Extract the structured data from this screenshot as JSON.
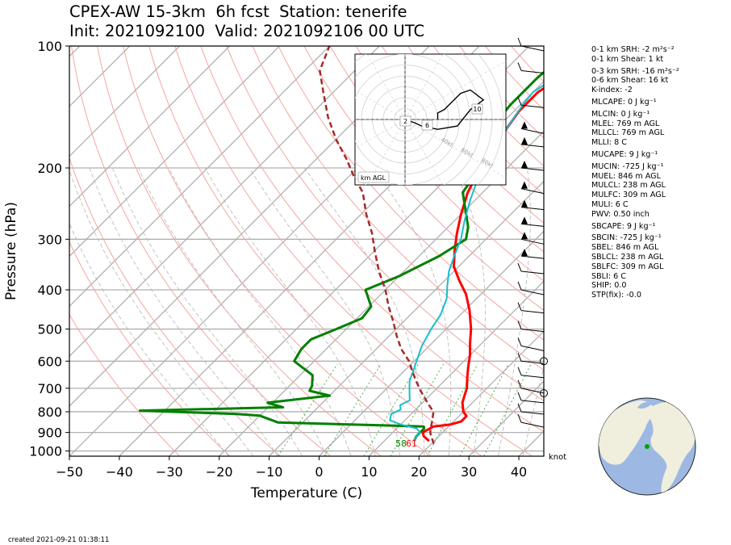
{
  "header": {
    "title_line1": "CPEX-AW 15-3km  6h fcst  Station: tenerife",
    "title_line2": "Init: 2021092100  Valid: 2021092106 00 UTC"
  },
  "footer": {
    "created": "created 2021-09-21 01:38:11"
  },
  "params": [
    "0-1 km SRH: -2 m²s⁻²",
    "0-1 km Shear: 1 kt",
    "0-3 km SRH: -16 m²s⁻²",
    "0-6 km Shear: 16 kt",
    "K-index: -2",
    "MLCAPE: 0 J kg⁻¹",
    "MLCIN: 0 J kg⁻¹",
    "MLEL: 769 m AGL",
    "MLLCL: 769 m AGL",
    "MLLI: 8 C",
    "MUCAPE: 9 J kg⁻¹",
    "MUCIN: -725 J kg⁻¹",
    "MUEL: 846 m AGL",
    "MULCL: 238 m AGL",
    "MULFC: 309 m AGL",
    "MULI: 6 C",
    "PWV: 0.50 inch",
    "SBCAPE: 9 J kg⁻¹",
    "SBCIN: -725 J kg⁻¹",
    "SBEL: 846 m AGL",
    "SBLCL: 238 m AGL",
    "SBLFC: 309 m AGL",
    "SBLI: 6 C",
    "SHIP: 0.0",
    "STP(fix): -0.0"
  ],
  "chart_data": {
    "type": "line",
    "subtype": "skew-T log-P sounding",
    "xlabel": "Temperature (C)",
    "ylabel": "Pressure (hPa)",
    "xlim": [
      -50,
      45
    ],
    "ylim": [
      1030,
      100
    ],
    "y_scale": "log",
    "x_ticks": [
      -50,
      -40,
      -30,
      -20,
      -10,
      0,
      10,
      20,
      30,
      40
    ],
    "y_ticks": [
      100,
      200,
      300,
      400,
      500,
      600,
      700,
      800,
      900,
      1000
    ],
    "grid": true,
    "wind_unit": "knot",
    "surface_labels": {
      "dewpoint": "58",
      "temperature": "61"
    },
    "colors": {
      "temperature": "#ff0000",
      "dewpoint": "#008000",
      "wetbulb": "#17becf",
      "parcel": "#a52a2a"
    },
    "series": [
      {
        "key": "temperature",
        "points": [
          [
            19,
            945
          ],
          [
            17,
            920
          ],
          [
            16,
            900
          ],
          [
            17,
            870
          ],
          [
            20,
            860
          ],
          [
            21.5,
            845
          ],
          [
            21.5,
            820
          ],
          [
            20,
            800
          ],
          [
            18,
            760
          ],
          [
            17,
            730
          ],
          [
            16,
            700
          ],
          [
            14,
            660
          ],
          [
            12,
            620
          ],
          [
            10,
            580
          ],
          [
            7.5,
            540
          ],
          [
            5,
            500
          ],
          [
            1,
            450
          ],
          [
            -3,
            410
          ],
          [
            -7,
            380
          ],
          [
            -11,
            350
          ],
          [
            -14,
            320
          ],
          [
            -17,
            290
          ],
          [
            -20,
            260
          ],
          [
            -23,
            230
          ],
          [
            -25,
            205
          ],
          [
            -26,
            190
          ],
          [
            -27,
            175
          ],
          [
            -28,
            160
          ],
          [
            -29,
            145
          ],
          [
            -29,
            130
          ],
          [
            -27.5,
            120
          ],
          [
            -26,
            110
          ],
          [
            -25,
            100
          ]
        ]
      },
      {
        "key": "dewpoint",
        "points": [
          [
            16,
            945
          ],
          [
            15.5,
            920
          ],
          [
            15.5,
            900
          ],
          [
            15.5,
            880
          ],
          [
            15,
            870
          ],
          [
            0,
            860
          ],
          [
            -15,
            850
          ],
          [
            -20,
            818
          ],
          [
            -25,
            810
          ],
          [
            -45,
            795
          ],
          [
            -17,
            780
          ],
          [
            -21,
            760
          ],
          [
            -10,
            730
          ],
          [
            -15,
            710
          ],
          [
            -15.5,
            690
          ],
          [
            -17.5,
            650
          ],
          [
            -24,
            600
          ],
          [
            -25,
            560
          ],
          [
            -25,
            530
          ],
          [
            -22,
            500
          ],
          [
            -19,
            470
          ],
          [
            -19.5,
            440
          ],
          [
            -24,
            400
          ],
          [
            -20,
            370
          ],
          [
            -16,
            330
          ],
          [
            -14,
            300
          ],
          [
            -16,
            280
          ],
          [
            -19,
            260
          ],
          [
            -24,
            230
          ],
          [
            -25,
            210
          ],
          [
            -24,
            200
          ],
          [
            -27,
            180
          ],
          [
            -31,
            160
          ],
          [
            -32,
            140
          ],
          [
            -32,
            120
          ],
          [
            -31.5,
            110
          ],
          [
            -30,
            100
          ]
        ]
      },
      {
        "key": "wetbulb",
        "points": [
          [
            16,
            945
          ],
          [
            15.5,
            920
          ],
          [
            15.5,
            900
          ],
          [
            14,
            880
          ],
          [
            10,
            860
          ],
          [
            7,
            840
          ],
          [
            6,
            810
          ],
          [
            7,
            790
          ],
          [
            6,
            770
          ],
          [
            7,
            750
          ],
          [
            6,
            730
          ],
          [
            4.5,
            700
          ],
          [
            3,
            670
          ],
          [
            2,
            640
          ],
          [
            0.5,
            600
          ],
          [
            -1.5,
            550
          ],
          [
            -3,
            500
          ],
          [
            -4,
            460
          ],
          [
            -6,
            420
          ],
          [
            -8.5,
            390
          ],
          [
            -11,
            360
          ],
          [
            -13,
            330
          ],
          [
            -15,
            300
          ],
          [
            -18,
            270
          ],
          [
            -21,
            240
          ],
          [
            -24,
            210
          ],
          [
            -26,
            190
          ],
          [
            -27,
            175
          ],
          [
            -28,
            160
          ],
          [
            -29.5,
            140
          ],
          [
            -30,
            130
          ],
          [
            -28.5,
            120
          ],
          [
            -27,
            110
          ],
          [
            -25.5,
            100
          ]
        ]
      },
      {
        "key": "parcel",
        "points": [
          [
            20.5,
            960
          ],
          [
            19.5,
            940
          ],
          [
            18.5,
            920
          ],
          [
            17.5,
            900
          ],
          [
            16.5,
            870
          ],
          [
            15.5,
            840
          ],
          [
            14,
            800
          ],
          [
            11,
            760
          ],
          [
            8,
            720
          ],
          [
            5,
            680
          ],
          [
            2,
            640
          ],
          [
            -1,
            600
          ],
          [
            -5,
            560
          ],
          [
            -8.5,
            520
          ],
          [
            -12,
            480
          ],
          [
            -16,
            440
          ],
          [
            -20,
            400
          ],
          [
            -25,
            360
          ],
          [
            -30,
            320
          ],
          [
            -34,
            290
          ],
          [
            -39,
            260
          ],
          [
            -44,
            230
          ],
          [
            -49,
            210
          ],
          [
            -54,
            190
          ],
          [
            -60,
            170
          ],
          [
            -66,
            150
          ],
          [
            -72,
            130
          ],
          [
            -77,
            115
          ],
          [
            -80,
            100
          ]
        ]
      }
    ],
    "hodograph": {
      "ring_speeds_kt": [
        40,
        60,
        80
      ],
      "height_unit_label": "km AGL",
      "height_labels": [
        "2",
        "6",
        "10"
      ],
      "points": [
        [
          0,
          0
        ],
        [
          3,
          -1
        ],
        [
          5,
          -2
        ],
        [
          10,
          -3
        ],
        [
          16,
          -2
        ],
        [
          20,
          3
        ],
        [
          24,
          6
        ],
        [
          20,
          9
        ],
        [
          17,
          8
        ],
        [
          12,
          3
        ],
        [
          10,
          2
        ],
        [
          10,
          0
        ]
      ]
    },
    "map_marker": {
      "lat": 28.3,
      "lon": -16.5,
      "color": "#00a000"
    }
  }
}
